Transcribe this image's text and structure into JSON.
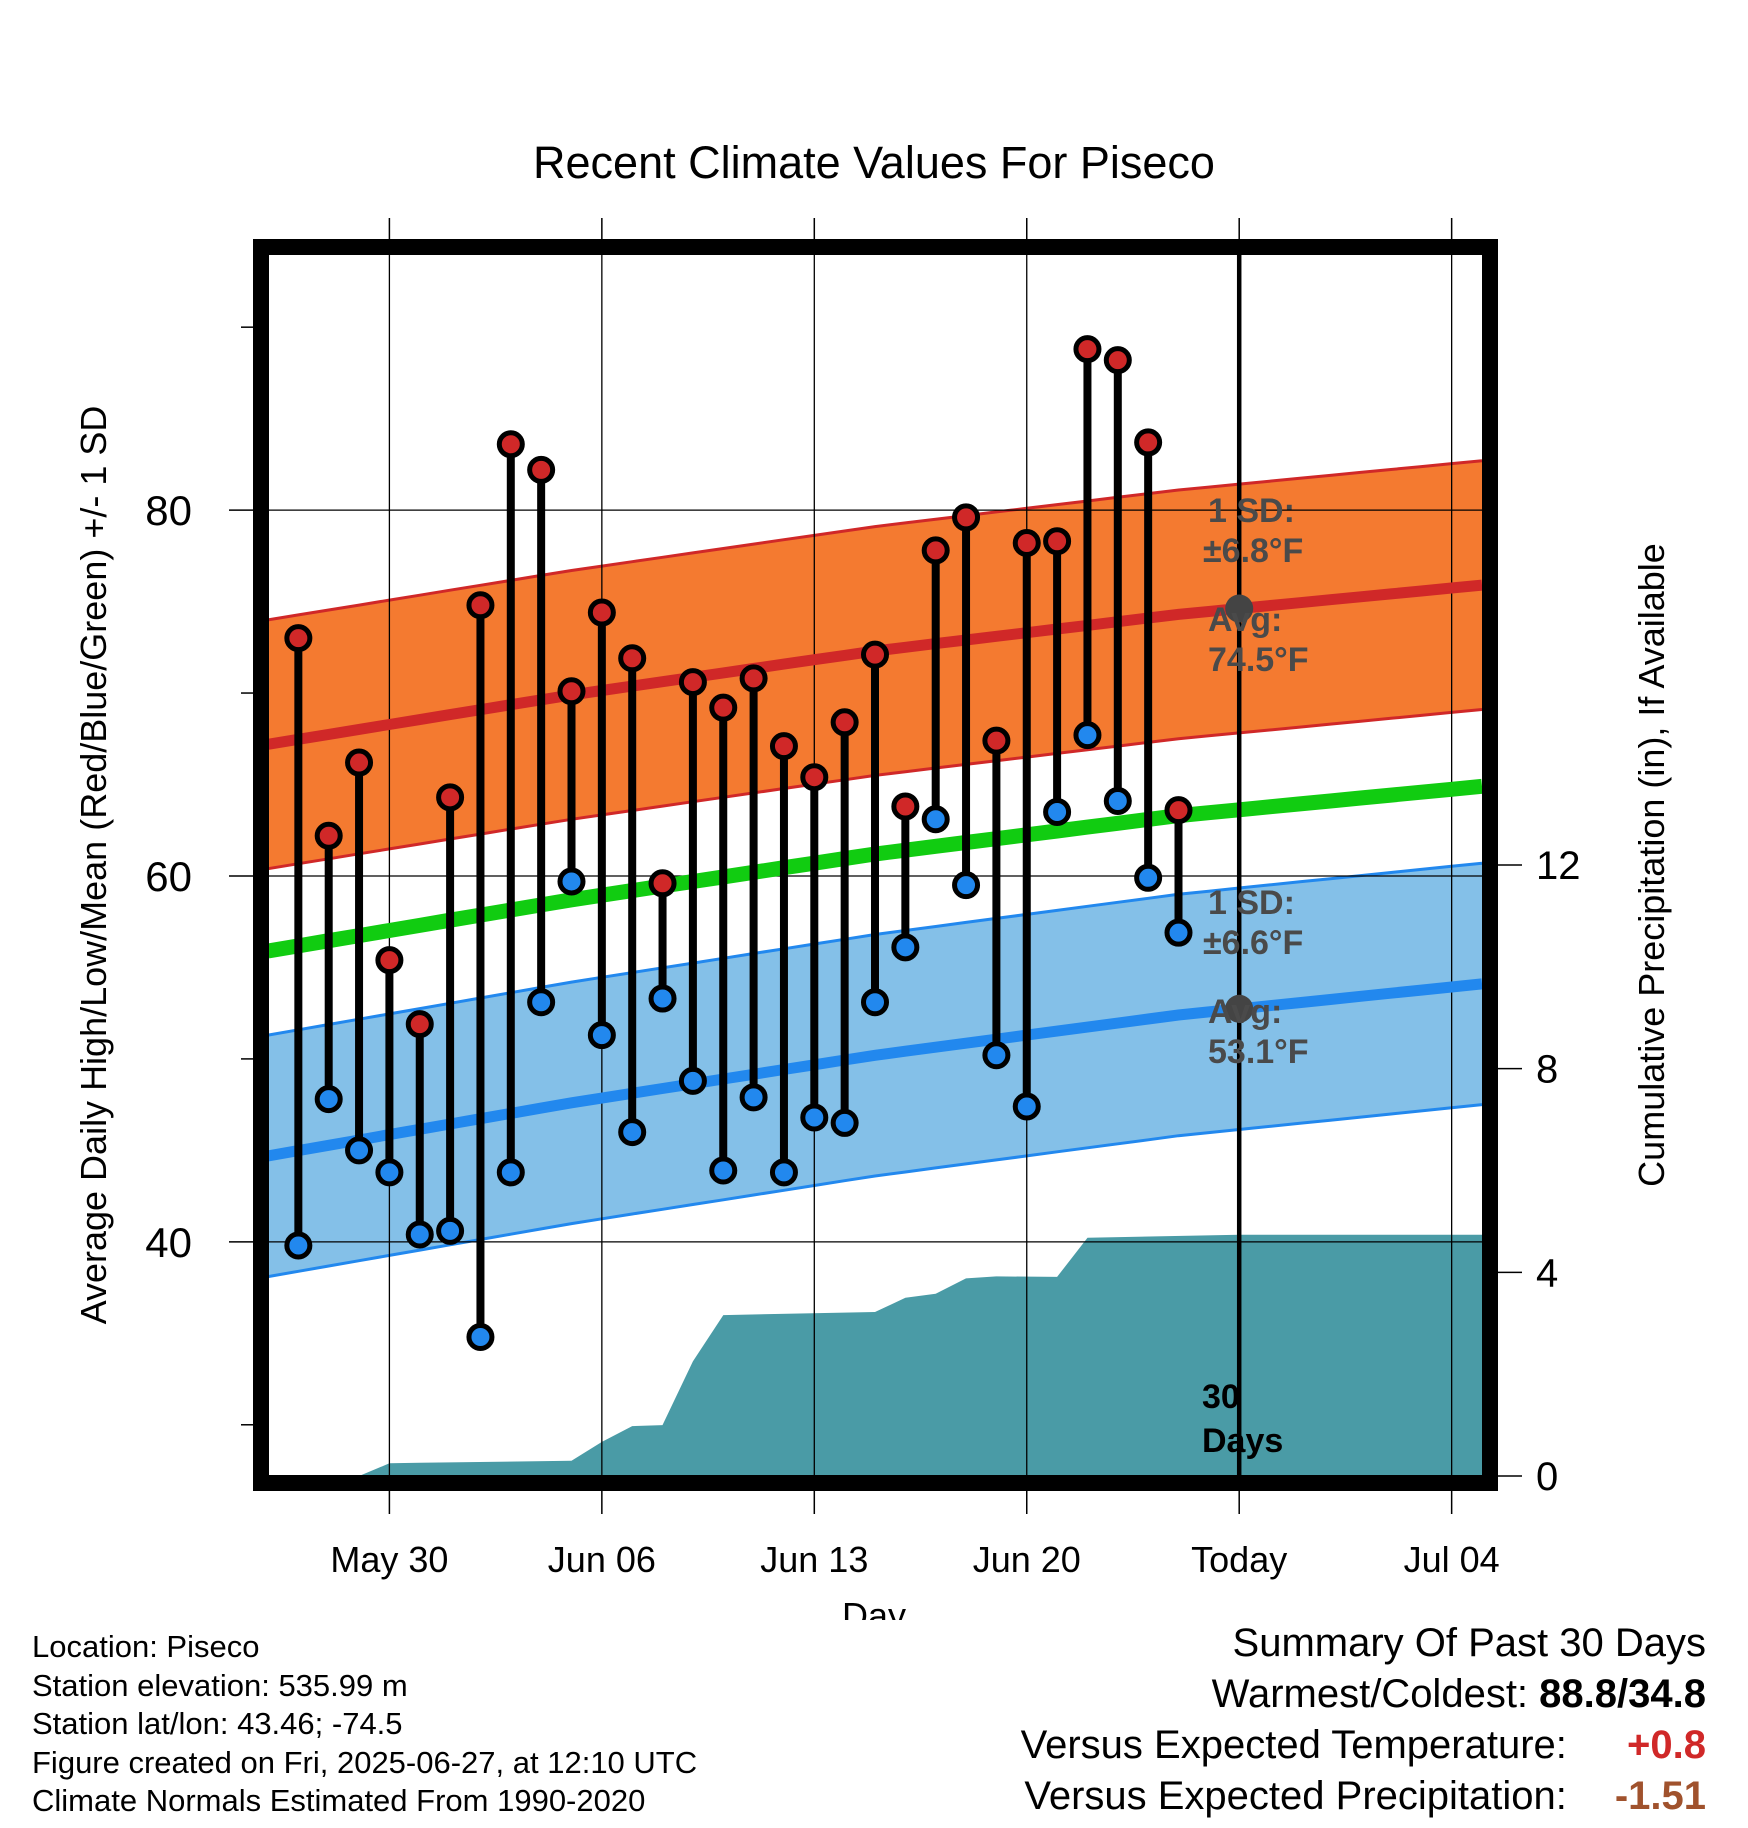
{
  "chart_data": {
    "type": "line",
    "title": "Recent Climate Values For Piseco",
    "xlabel": "Day",
    "ylabel": "Average Daily High/Low/Mean (Red/Blue/Green) +/- 1 SD",
    "y2label": "Cumulative Precipitation (in), If Available",
    "x_tick_labels": [
      "May 30",
      "Jun 06",
      "Jun 13",
      "Jun 20",
      "Today",
      "Jul 04"
    ],
    "y_ticks": [
      40,
      60,
      80
    ],
    "y2_ticks": [
      0,
      4,
      8,
      12
    ],
    "ylim": [
      27.2,
      94.0
    ],
    "y2lim": [
      0,
      24
    ],
    "xlim": [
      "2025-05-26",
      "2025-07-05"
    ],
    "today": "2025-06-27",
    "grid": true,
    "colors": {
      "high": "#d02828",
      "high_band": "#f47a30",
      "low": "#2288ee",
      "low_band": "#84c0e8",
      "mean": "#11cc11",
      "precip": "#4a9ba6",
      "avg_marker": "#444444"
    },
    "observed": {
      "dates": [
        "2025-05-27",
        "2025-05-28",
        "2025-05-29",
        "2025-05-30",
        "2025-05-31",
        "2025-06-01",
        "2025-06-02",
        "2025-06-03",
        "2025-06-04",
        "2025-06-05",
        "2025-06-06",
        "2025-06-07",
        "2025-06-08",
        "2025-06-09",
        "2025-06-10",
        "2025-06-11",
        "2025-06-12",
        "2025-06-13",
        "2025-06-14",
        "2025-06-15",
        "2025-06-16",
        "2025-06-17",
        "2025-06-18",
        "2025-06-19",
        "2025-06-20",
        "2025-06-21",
        "2025-06-22",
        "2025-06-23",
        "2025-06-24",
        "2025-06-25",
        "2025-06-26"
      ],
      "high": [
        73.0,
        62.2,
        66.2,
        55.4,
        51.9,
        64.3,
        74.8,
        83.6,
        82.2,
        70.1,
        74.4,
        71.9,
        59.6,
        70.6,
        69.2,
        70.8,
        67.1,
        65.4,
        68.4,
        72.1,
        63.8,
        77.8,
        79.6,
        67.4,
        78.2,
        78.3,
        88.8,
        88.2,
        83.7,
        63.6,
        null
      ],
      "low": [
        39.8,
        47.8,
        45.0,
        43.8,
        40.4,
        40.6,
        34.8,
        43.8,
        53.1,
        59.7,
        51.3,
        46.0,
        53.3,
        48.8,
        43.9,
        47.9,
        43.8,
        46.8,
        46.5,
        53.1,
        56.1,
        63.1,
        59.5,
        50.2,
        47.4,
        63.5,
        67.7,
        64.1,
        59.9,
        56.9,
        null
      ]
    },
    "normals": {
      "dates": [
        "2025-05-26",
        "2025-06-05",
        "2025-06-15",
        "2025-06-25",
        "2025-07-05"
      ],
      "high": [
        67.2,
        69.9,
        72.3,
        74.3,
        75.9
      ],
      "low": [
        44.7,
        47.6,
        50.2,
        52.4,
        54.1
      ],
      "mean": [
        55.9,
        58.7,
        61.2,
        63.3,
        64.9
      ],
      "high_sd": 6.8,
      "low_sd": 6.6
    },
    "precip": {
      "dates": [
        "2025-05-29",
        "2025-05-30",
        "2025-05-31",
        "2025-06-05",
        "2025-06-06",
        "2025-06-07",
        "2025-06-08",
        "2025-06-09",
        "2025-06-10",
        "2025-06-15",
        "2025-06-16",
        "2025-06-17",
        "2025-06-18",
        "2025-06-19",
        "2025-06-21",
        "2025-06-22",
        "2025-06-27",
        "2025-07-05"
      ],
      "cumulative": [
        0.0,
        0.25,
        0.26,
        0.3,
        0.67,
        0.98,
        1.0,
        2.25,
        3.16,
        3.22,
        3.5,
        3.58,
        3.88,
        3.92,
        3.91,
        4.68,
        4.74,
        4.74
      ]
    },
    "annotations": {
      "high_sd": "1 SD:",
      "high_sd_value": "±6.8°F",
      "high_avg": "Avg:",
      "high_avg_value": "74.5°F",
      "low_sd": "1 SD:",
      "low_sd_value": "±6.6°F",
      "low_avg": "Avg:",
      "low_avg_value": "53.1°F",
      "days_number": "30",
      "days_word": "Days"
    }
  },
  "footer": {
    "location": "Location: Piseco",
    "elevation": "Station elevation: 535.99 m",
    "latlon": "Station lat/lon: 43.46; -74.5",
    "created": "Figure created on Fri, 2025-06-27, at 12:10 UTC",
    "normals": "Climate Normals Estimated From 1990-2020"
  },
  "summary": {
    "title": "Summary Of Past 30 Days",
    "warmest_label": "Warmest/Coldest:",
    "warmest_value": "88.8/34.8",
    "temp_label": "Versus Expected Temperature:",
    "temp_value": "+0.8",
    "temp_color": "#d02828",
    "precip_label": "Versus Expected Precipitation:",
    "precip_value": "-1.51",
    "precip_color": "#a0522d"
  }
}
